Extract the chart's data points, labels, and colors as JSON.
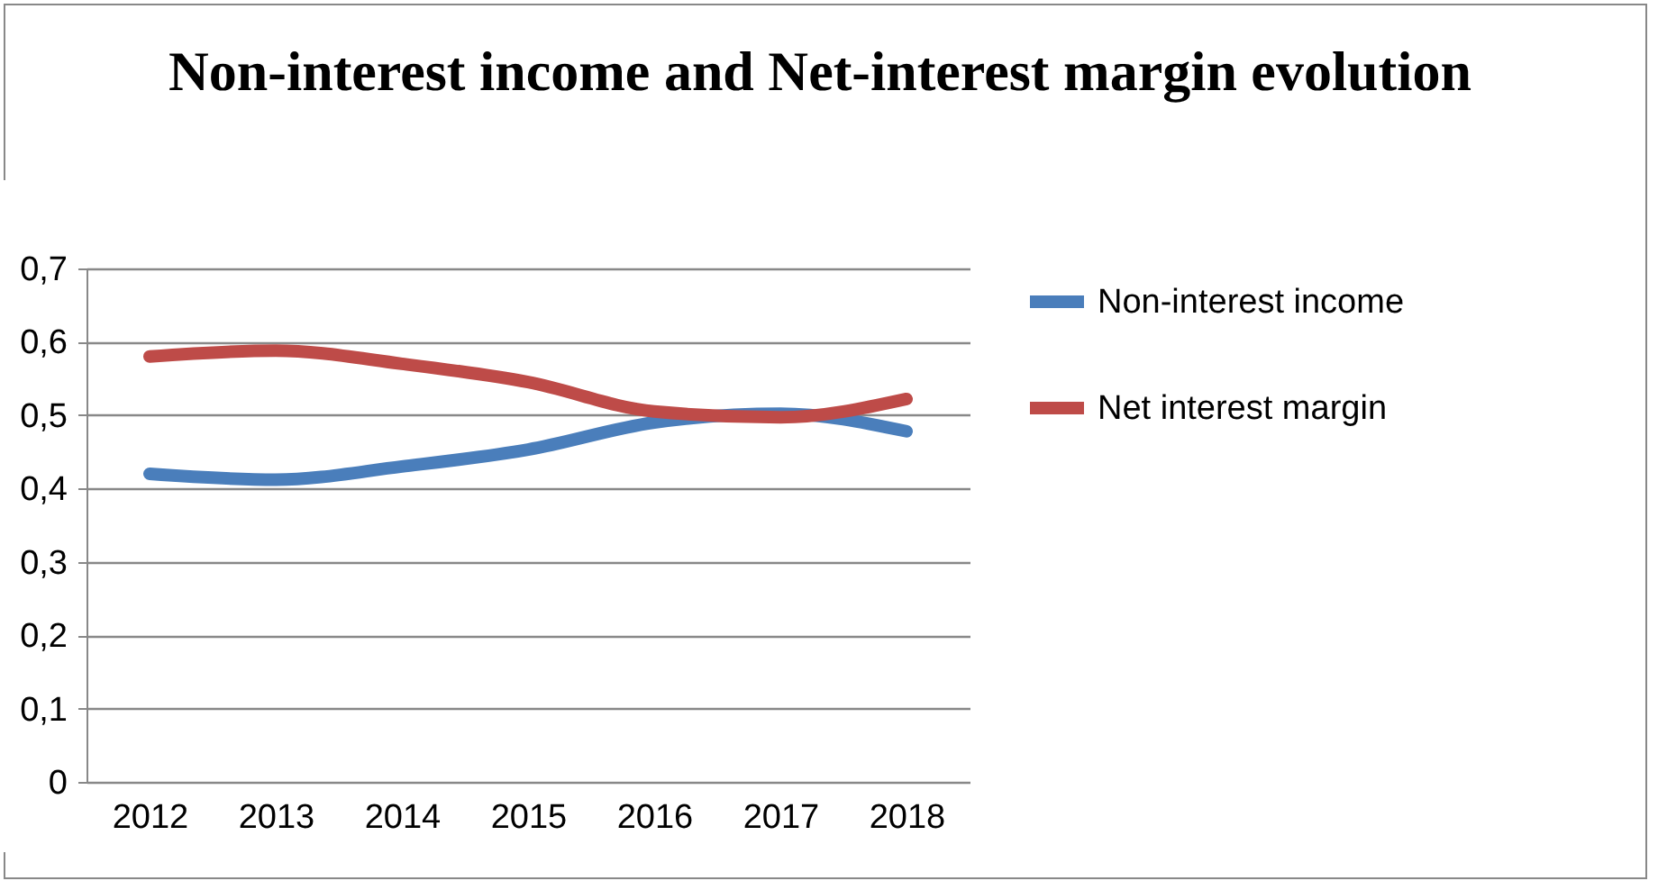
{
  "chart_data": {
    "type": "line",
    "title": "Non-interest income and Net-interest margin evolution",
    "categories": [
      "2012",
      "2013",
      "2014",
      "2015",
      "2016",
      "2017",
      "2018"
    ],
    "series": [
      {
        "name": "Non-interest income",
        "color": "#4a7ebb",
        "values": [
          0.42,
          0.412,
          0.43,
          0.453,
          0.49,
          0.502,
          0.478
        ]
      },
      {
        "name": "Net interest margin",
        "color": "#be4b48",
        "values": [
          0.58,
          0.588,
          0.57,
          0.545,
          0.505,
          0.497,
          0.522
        ]
      }
    ],
    "ylim": [
      0,
      0.7
    ],
    "yticks": [
      {
        "value": 0,
        "label": "0"
      },
      {
        "value": 0.1,
        "label": "0,1"
      },
      {
        "value": 0.2,
        "label": "0,2"
      },
      {
        "value": 0.3,
        "label": "0,3"
      },
      {
        "value": 0.4,
        "label": "0,4"
      },
      {
        "value": 0.5,
        "label": "0,5"
      },
      {
        "value": 0.6,
        "label": "0,6"
      },
      {
        "value": 0.7,
        "label": "0,7"
      }
    ],
    "grid": "y",
    "legend": "right",
    "marker": "none",
    "line_style": "solid"
  }
}
